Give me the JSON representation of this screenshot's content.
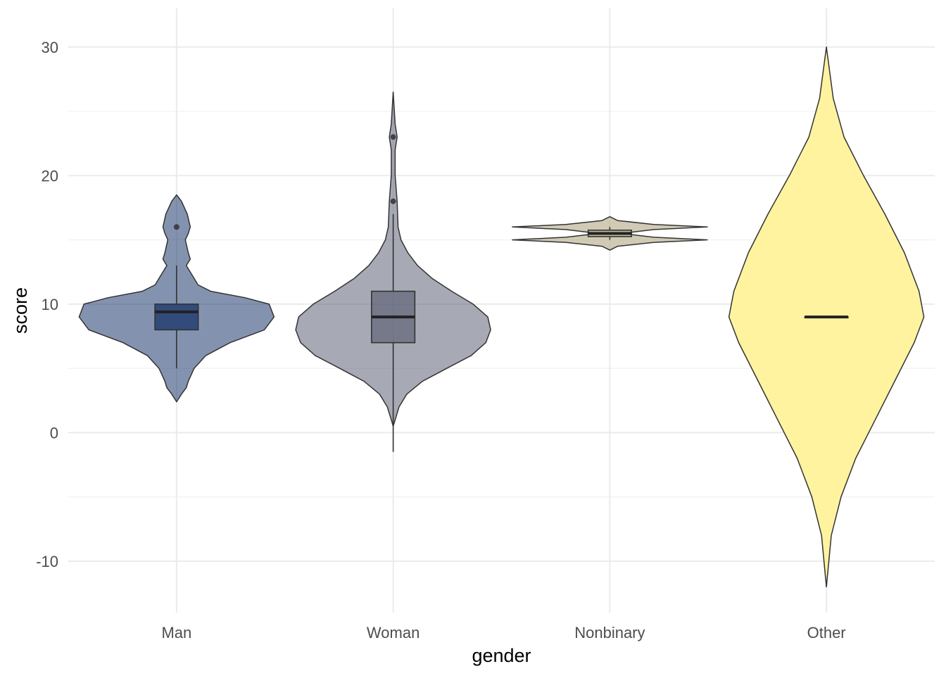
{
  "chart_data": {
    "type": "violin",
    "xlabel": "gender",
    "ylabel": "score",
    "ylim": [
      -14,
      33
    ],
    "yticks": [
      -10,
      0,
      10,
      20,
      30
    ],
    "y_minor_ticks": [
      -5,
      5,
      15,
      25
    ],
    "grid": true,
    "categories": [
      "Man",
      "Woman",
      "Nonbinary",
      "Other"
    ],
    "groups": [
      {
        "name": "Man",
        "color": "#1e3a6e",
        "violin_fill_opacity": 0.55,
        "box_fill_opacity": 0.8,
        "violin_range": [
          2.4,
          18.5
        ],
        "box": {
          "q1": 8,
          "median": 9.4,
          "q3": 10,
          "whisker_low": 5,
          "whisker_high": 13
        },
        "outliers": [
          16
        ],
        "density": [
          [
            2.4,
            0.0
          ],
          [
            3,
            0.05
          ],
          [
            3.5,
            0.1
          ],
          [
            4,
            0.12
          ],
          [
            5,
            0.18
          ],
          [
            6,
            0.3
          ],
          [
            7,
            0.55
          ],
          [
            8,
            0.9
          ],
          [
            9,
            1.0
          ],
          [
            10,
            0.95
          ],
          [
            10.5,
            0.7
          ],
          [
            11,
            0.35
          ],
          [
            11.5,
            0.22
          ],
          [
            12,
            0.18
          ],
          [
            13,
            0.1
          ],
          [
            13.5,
            0.14
          ],
          [
            14,
            0.12
          ],
          [
            15,
            0.09
          ],
          [
            15.5,
            0.12
          ],
          [
            16,
            0.14
          ],
          [
            17,
            0.11
          ],
          [
            18,
            0.05
          ],
          [
            18.5,
            0.0
          ]
        ]
      },
      {
        "name": "Woman",
        "color": "#5f6478",
        "violin_fill_opacity": 0.55,
        "box_fill_opacity": 0.7,
        "violin_range": [
          0.5,
          26.5
        ],
        "box": {
          "q1": 7,
          "median": 9,
          "q3": 11,
          "whisker_low": -1.5,
          "whisker_high": 17
        },
        "outliers": [
          18,
          23
        ],
        "density": [
          [
            0.5,
            0.0
          ],
          [
            1,
            0.02
          ],
          [
            2,
            0.06
          ],
          [
            3,
            0.14
          ],
          [
            4,
            0.3
          ],
          [
            5,
            0.55
          ],
          [
            6,
            0.8
          ],
          [
            7,
            0.95
          ],
          [
            8,
            1.0
          ],
          [
            9,
            0.97
          ],
          [
            10,
            0.82
          ],
          [
            11,
            0.6
          ],
          [
            12,
            0.4
          ],
          [
            13,
            0.25
          ],
          [
            14,
            0.15
          ],
          [
            15,
            0.08
          ],
          [
            16,
            0.05
          ],
          [
            18,
            0.04
          ],
          [
            20,
            0.02
          ],
          [
            22,
            0.02
          ],
          [
            23,
            0.04
          ],
          [
            24,
            0.02
          ],
          [
            26.5,
            0.0
          ]
        ]
      },
      {
        "name": "Nonbinary",
        "color": "#bdb597",
        "violin_fill_opacity": 0.7,
        "box_fill_opacity": 0.85,
        "violin_range": [
          14.2,
          16.8
        ],
        "box": {
          "q1": 15.25,
          "median": 15.5,
          "q3": 15.75,
          "whisker_low": 15,
          "whisker_high": 16
        },
        "outliers": [],
        "density": [
          [
            14.2,
            0.0
          ],
          [
            14.5,
            0.08
          ],
          [
            14.8,
            0.45
          ],
          [
            15,
            1.0
          ],
          [
            15.2,
            0.45
          ],
          [
            15.5,
            0.12
          ],
          [
            15.8,
            0.45
          ],
          [
            16,
            1.0
          ],
          [
            16.2,
            0.45
          ],
          [
            16.5,
            0.08
          ],
          [
            16.8,
            0.0
          ]
        ]
      },
      {
        "name": "Other",
        "color": "#fff3a0",
        "violin_fill_opacity": 1.0,
        "box_fill_opacity": 0.9,
        "violin_range": [
          -12,
          30
        ],
        "box": {
          "q1": 9,
          "median": 9,
          "q3": 9,
          "whisker_low": 9,
          "whisker_high": 9
        },
        "outliers": [],
        "density": [
          [
            -12,
            0.0
          ],
          [
            -8,
            0.05
          ],
          [
            -5,
            0.15
          ],
          [
            -2,
            0.3
          ],
          [
            1,
            0.5
          ],
          [
            4,
            0.7
          ],
          [
            7,
            0.9
          ],
          [
            9,
            1.0
          ],
          [
            11,
            0.95
          ],
          [
            14,
            0.8
          ],
          [
            17,
            0.6
          ],
          [
            20,
            0.38
          ],
          [
            23,
            0.18
          ],
          [
            26,
            0.07
          ],
          [
            30,
            0.0
          ]
        ]
      }
    ]
  }
}
